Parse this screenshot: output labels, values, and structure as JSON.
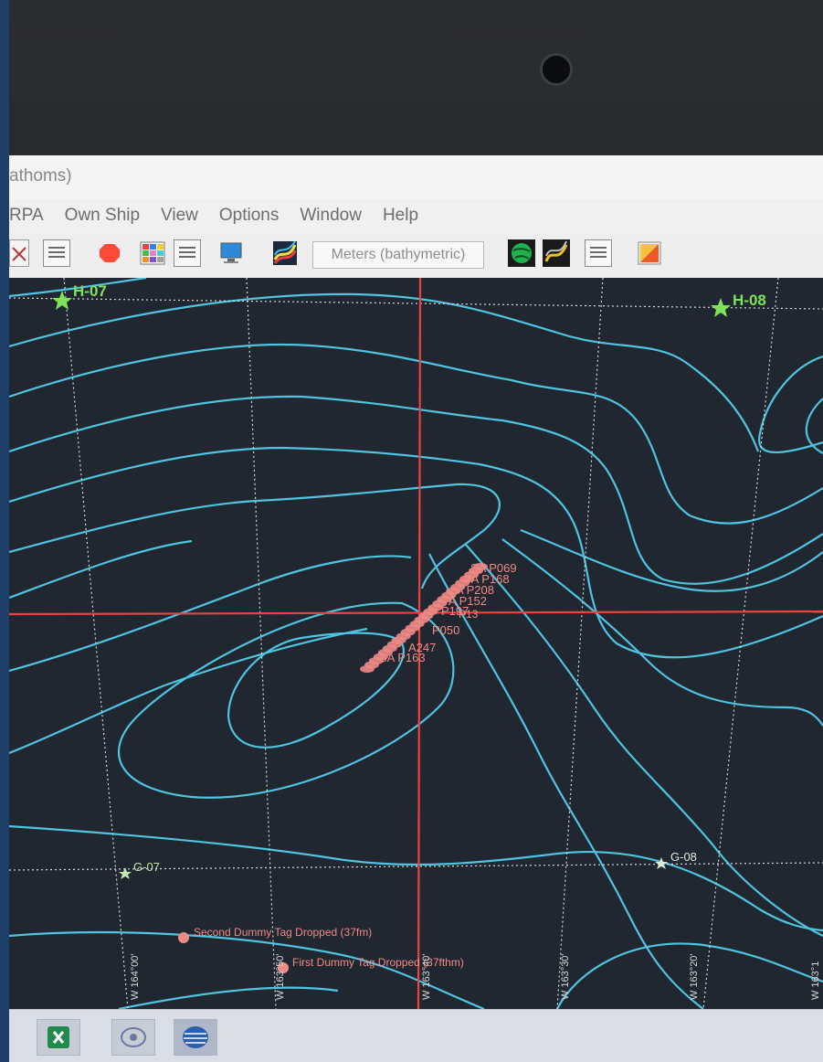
{
  "window": {
    "title_fragment": "athoms)"
  },
  "menu": [
    "RPA",
    "Own Ship",
    "View",
    "Options",
    "Window",
    "Help"
  ],
  "toolbar": {
    "unit_selector": {
      "value": "Meters (bathymetric)"
    },
    "icons": [
      "crossed-icon",
      "list-icon",
      "stop-icon",
      "color-grid-icon",
      "list-icon",
      "monitor-icon",
      "contour-icon",
      "globe-icon",
      "chart-icon",
      "list-icon",
      "orange-flag-icon"
    ]
  },
  "map": {
    "colors": {
      "background": "#202730",
      "contour": "#4fc3e0",
      "grid": "#d9d9d9",
      "cursor": "#e8433f",
      "marker": "#f08a85",
      "station": "#7fe35a"
    },
    "stations": [
      {
        "id": "H-07",
        "style": "bold"
      },
      {
        "id": "H-08",
        "style": "bold"
      },
      {
        "id": "G-07",
        "style": "light"
      },
      {
        "id": "G-08",
        "style": "light"
      }
    ],
    "cluster_labels": [
      "SA P069",
      "SA P168",
      "A P208",
      "A P152",
      "P197",
      "P13",
      "P050",
      "A247",
      "SA P163"
    ],
    "events": [
      "Second Dummy Tag Dropped (37fm)",
      "First Dummy Tag Dropped (37fthm)"
    ],
    "meridians": [
      "W 164°00'",
      "W 163°50'",
      "W 163°40'",
      "W 163°30'",
      "W 163°20'",
      "W 163°1"
    ]
  }
}
